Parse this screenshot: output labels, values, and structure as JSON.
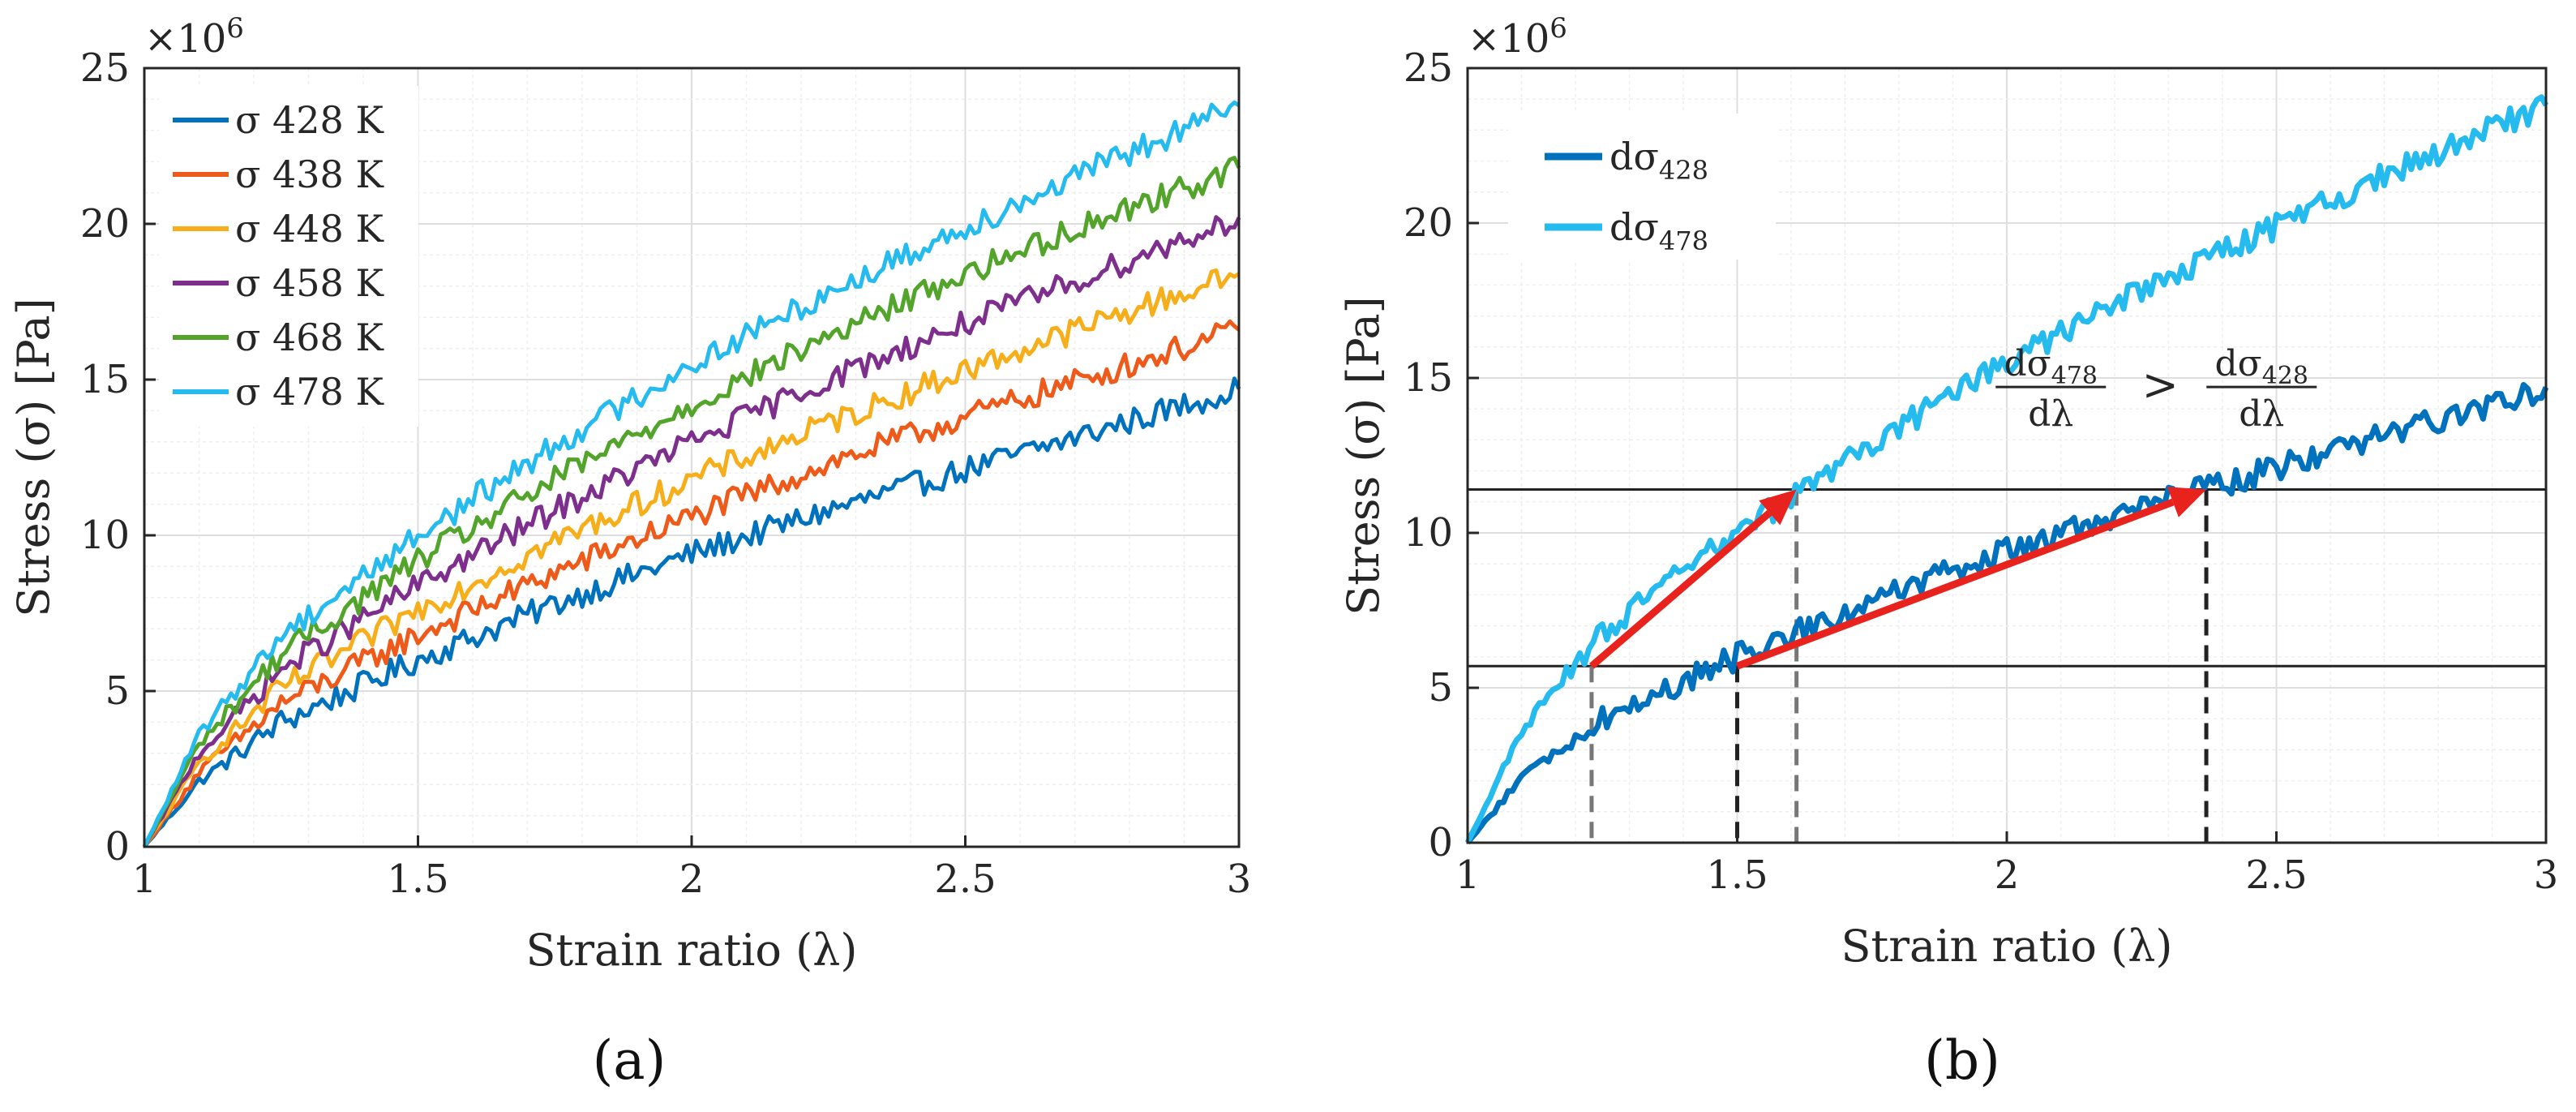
{
  "colors": {
    "s428": "#0072BD",
    "s438": "#EE5A1A",
    "s448": "#F6AE1A",
    "s458": "#7E2F8E",
    "s468": "#52A52A",
    "s478": "#26BBEE",
    "arrow": "#E8231E",
    "refline": "#222222",
    "dash_dark": "#222222",
    "dash_gray": "#777777"
  },
  "chart_data": [
    {
      "type": "line",
      "panel": "(a)",
      "xlabel": "Strain ratio (λ)",
      "ylabel": "Stress (σ) [Pa]",
      "multiplier": "×10",
      "multiplier_exp": "6",
      "xlim": [
        1,
        3
      ],
      "ylim": [
        0,
        25
      ],
      "xticks": [
        1,
        1.5,
        2,
        2.5,
        3
      ],
      "xtick_labels": [
        "1",
        "1.5",
        "2",
        "2.5",
        "3"
      ],
      "yticks": [
        0,
        5,
        10,
        15,
        20,
        25
      ],
      "ytick_labels": [
        "0",
        "5",
        "10",
        "15",
        "20",
        "25"
      ],
      "grid": true,
      "legend_position": "top-left",
      "series": [
        {
          "name": "σ 428 K",
          "color": "s428",
          "x": [
            1,
            1.1,
            1.25,
            1.5,
            1.75,
            2,
            2.25,
            2.5,
            2.75,
            3
          ],
          "values": [
            0,
            2.1,
            4.0,
            6.0,
            7.8,
            9.4,
            10.8,
            12.1,
            13.4,
            14.7
          ]
        },
        {
          "name": "σ 438 K",
          "color": "s438",
          "x": [
            1,
            1.1,
            1.25,
            1.5,
            1.75,
            2,
            2.25,
            2.5,
            2.75,
            3
          ],
          "values": [
            0,
            2.4,
            4.6,
            6.8,
            8.8,
            10.6,
            12.3,
            13.8,
            15.2,
            16.6
          ]
        },
        {
          "name": "σ 448 K",
          "color": "s448",
          "x": [
            1,
            1.1,
            1.25,
            1.5,
            1.75,
            2,
            2.25,
            2.5,
            2.75,
            3
          ],
          "values": [
            0,
            2.7,
            5.1,
            7.6,
            9.8,
            11.8,
            13.6,
            15.3,
            16.9,
            18.4
          ]
        },
        {
          "name": "σ 458 K",
          "color": "s458",
          "x": [
            1,
            1.1,
            1.25,
            1.5,
            1.75,
            2,
            2.25,
            2.5,
            2.75,
            3
          ],
          "values": [
            0,
            3.0,
            5.7,
            8.4,
            10.8,
            13.0,
            15.0,
            16.8,
            18.5,
            20.2
          ]
        },
        {
          "name": "σ 468 K",
          "color": "s468",
          "x": [
            1,
            1.1,
            1.25,
            1.5,
            1.75,
            2,
            2.25,
            2.5,
            2.75,
            3
          ],
          "values": [
            0,
            3.3,
            6.2,
            9.2,
            11.8,
            14.2,
            16.4,
            18.4,
            20.2,
            21.8
          ]
        },
        {
          "name": "σ 478 K",
          "color": "s478",
          "x": [
            1,
            1.1,
            1.25,
            1.5,
            1.75,
            2,
            2.25,
            2.5,
            2.75,
            3
          ],
          "values": [
            0,
            3.6,
            6.8,
            10.0,
            12.9,
            15.5,
            17.8,
            19.9,
            21.9,
            23.8
          ]
        }
      ]
    },
    {
      "type": "line",
      "panel": "(b)",
      "xlabel": "Strain ratio (λ)",
      "ylabel": "Stress (σ) [Pa]",
      "multiplier": "×10",
      "multiplier_exp": "6",
      "xlim": [
        1,
        3
      ],
      "ylim": [
        0,
        25
      ],
      "xticks": [
        1,
        1.5,
        2,
        2.5,
        3
      ],
      "xtick_labels": [
        "1",
        "1.5",
        "2",
        "2.5",
        "3"
      ],
      "yticks": [
        0,
        5,
        10,
        15,
        20,
        25
      ],
      "ytick_labels": [
        "0",
        "5",
        "10",
        "15",
        "20",
        "25"
      ],
      "grid": true,
      "legend_position": "top-left",
      "series": [
        {
          "name": "dσ",
          "subscript": "428",
          "color": "s428",
          "x": [
            1,
            1.1,
            1.25,
            1.5,
            1.75,
            2,
            2.25,
            2.5,
            2.75,
            3
          ],
          "values": [
            0,
            2.1,
            4.0,
            6.0,
            7.8,
            9.4,
            10.8,
            12.1,
            13.4,
            14.7
          ]
        },
        {
          "name": "dσ",
          "subscript": "478",
          "color": "s478",
          "x": [
            1,
            1.1,
            1.25,
            1.5,
            1.75,
            2,
            2.25,
            2.5,
            2.75,
            3
          ],
          "values": [
            0,
            3.6,
            6.8,
            10.0,
            12.9,
            15.5,
            17.8,
            19.9,
            21.9,
            23.8
          ]
        }
      ],
      "hlines": [
        5.7,
        11.4
      ],
      "vlines": [
        {
          "x": 1.23,
          "style": "gray-dashed",
          "y_top": 5.7
        },
        {
          "x": 1.61,
          "style": "gray-dashed",
          "y_top": 11.4
        },
        {
          "x": 1.5,
          "style": "dark-dashed",
          "y_top": 5.7
        },
        {
          "x": 2.37,
          "style": "dark-dashed",
          "y_top": 11.4
        }
      ],
      "arrows": [
        {
          "from": [
            1.23,
            5.7
          ],
          "to": [
            1.61,
            11.4
          ]
        },
        {
          "from": [
            1.5,
            5.7
          ],
          "to": [
            2.37,
            11.4
          ]
        }
      ],
      "annotation": {
        "left_num": "dσ",
        "left_num_sub": "478",
        "left_den": "dλ",
        "operator": ">",
        "right_num": "dσ",
        "right_num_sub": "428",
        "right_den": "dλ",
        "anchor": [
          2.45,
          14.5
        ]
      }
    }
  ]
}
